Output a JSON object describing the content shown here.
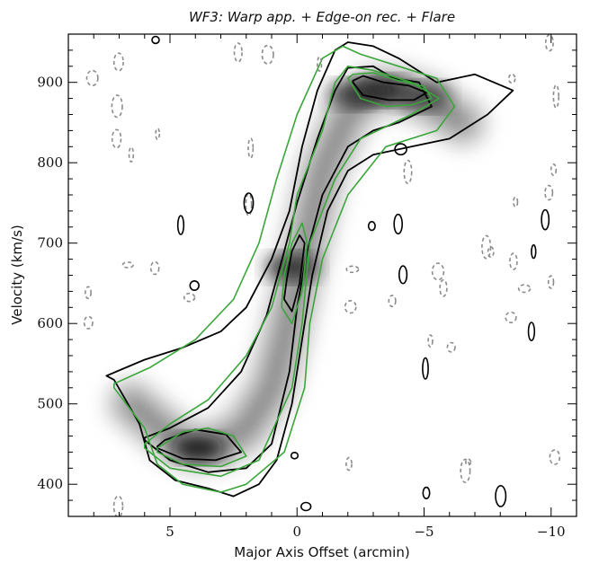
{
  "chart_data": {
    "type": "heatmap",
    "title": "WF3: Warp app. + Edge-on rec. + Flare",
    "xlabel": "Major Axis Offset (arcmin)",
    "ylabel": "Velocity (km/s)",
    "xlim": [
      9.0,
      -11.0
    ],
    "ylim": [
      360,
      960
    ],
    "x_ticks": [
      {
        "value": 5,
        "label": "5"
      },
      {
        "value": 0,
        "label": "0"
      },
      {
        "value": -5,
        "label": "−5"
      },
      {
        "value": -10,
        "label": "−10"
      }
    ],
    "y_ticks": [
      {
        "value": 400,
        "label": "400"
      },
      {
        "value": 500,
        "label": "500"
      },
      {
        "value": 600,
        "label": "600"
      },
      {
        "value": 700,
        "label": "700"
      },
      {
        "value": 800,
        "label": "800"
      },
      {
        "value": 900,
        "label": "900"
      }
    ],
    "ridge": [
      {
        "x": 6.5,
        "y": 500
      },
      {
        "x": 5.0,
        "y": 460
      },
      {
        "x": 4.0,
        "y": 445
      },
      {
        "x": 3.0,
        "y": 450
      },
      {
        "x": 2.0,
        "y": 470
      },
      {
        "x": 1.0,
        "y": 520
      },
      {
        "x": 0.5,
        "y": 580
      },
      {
        "x": 0.0,
        "y": 650
      },
      {
        "x": -0.5,
        "y": 720
      },
      {
        "x": -1.0,
        "y": 790
      },
      {
        "x": -2.0,
        "y": 860
      },
      {
        "x": -3.0,
        "y": 890
      },
      {
        "x": -4.0,
        "y": 890
      },
      {
        "x": -5.0,
        "y": 880
      },
      {
        "x": -6.5,
        "y": 850
      }
    ],
    "peaks": [
      {
        "x": 3.9,
        "y": 445,
        "intensity": 1.0
      },
      {
        "x": 0.2,
        "y": 670,
        "intensity": 0.75
      },
      {
        "x": -3.4,
        "y": 890,
        "intensity": 0.85
      },
      {
        "x": -2.3,
        "y": 885,
        "intensity": 0.7
      },
      {
        "x": -5.0,
        "y": 882,
        "intensity": 0.55
      }
    ],
    "contours_model": [
      [
        [
          7.2,
          520
        ],
        [
          6.0,
          470
        ],
        [
          5.5,
          425
        ],
        [
          4.5,
          400
        ],
        [
          3.0,
          390
        ],
        [
          2.0,
          400
        ],
        [
          0.5,
          440
        ],
        [
          -0.3,
          520
        ],
        [
          -0.5,
          600
        ],
        [
          -1.0,
          680
        ],
        [
          -2.0,
          760
        ],
        [
          -3.5,
          820
        ],
        [
          -5.5,
          840
        ],
        [
          -6.2,
          870
        ],
        [
          -5.5,
          905
        ],
        [
          -4.0,
          920
        ],
        [
          -2.5,
          935
        ],
        [
          -1.8,
          945
        ],
        [
          -1.0,
          930
        ],
        [
          0.0,
          860
        ],
        [
          0.8,
          780
        ],
        [
          1.5,
          700
        ],
        [
          2.5,
          630
        ],
        [
          4.0,
          580
        ],
        [
          5.8,
          545
        ],
        [
          7.2,
          525
        ]
      ],
      [
        [
          6.0,
          445
        ],
        [
          5.0,
          420
        ],
        [
          3.0,
          410
        ],
        [
          1.5,
          430
        ],
        [
          0.2,
          520
        ],
        [
          -0.2,
          600
        ],
        [
          -0.5,
          700
        ],
        [
          -1.5,
          780
        ],
        [
          -2.5,
          830
        ],
        [
          -4.5,
          860
        ],
        [
          -5.6,
          880
        ],
        [
          -4.5,
          900
        ],
        [
          -3.0,
          915
        ],
        [
          -2.0,
          920
        ],
        [
          -1.5,
          900
        ],
        [
          -1.0,
          840
        ],
        [
          0.0,
          760
        ],
        [
          0.3,
          700
        ],
        [
          1.0,
          620
        ],
        [
          2.0,
          560
        ],
        [
          3.5,
          505
        ],
        [
          5.0,
          475
        ],
        [
          6.0,
          450
        ]
      ],
      [
        [
          5.5,
          440
        ],
        [
          4.5,
          425
        ],
        [
          3.0,
          422
        ],
        [
          2.0,
          435
        ],
        [
          2.5,
          460
        ],
        [
          3.5,
          470
        ],
        [
          4.5,
          465
        ],
        [
          5.5,
          445
        ]
      ],
      [
        [
          0.6,
          620
        ],
        [
          0.2,
          600
        ],
        [
          -0.2,
          640
        ],
        [
          -0.4,
          700
        ],
        [
          -0.2,
          725
        ],
        [
          0.2,
          700
        ],
        [
          0.5,
          660
        ],
        [
          0.6,
          625
        ]
      ],
      [
        [
          -2.0,
          905
        ],
        [
          -2.5,
          880
        ],
        [
          -3.5,
          870
        ],
        [
          -4.5,
          872
        ],
        [
          -5.3,
          880
        ],
        [
          -5.0,
          895
        ],
        [
          -4.0,
          902
        ],
        [
          -3.0,
          912
        ],
        [
          -2.2,
          910
        ]
      ]
    ],
    "contours_data": [
      [
        [
          7.2,
          530
        ],
        [
          6.2,
          475
        ],
        [
          5.8,
          430
        ],
        [
          4.8,
          405
        ],
        [
          3.5,
          395
        ],
        [
          2.5,
          385
        ],
        [
          1.5,
          400
        ],
        [
          0.8,
          430
        ],
        [
          0.2,
          500
        ],
        [
          -0.2,
          580
        ],
        [
          -0.6,
          660
        ],
        [
          -1.2,
          740
        ],
        [
          -2.0,
          790
        ],
        [
          -3.0,
          810
        ],
        [
          -4.5,
          820
        ],
        [
          -6.0,
          830
        ],
        [
          -7.5,
          860
        ],
        [
          -8.5,
          890
        ],
        [
          -7.0,
          910
        ],
        [
          -5.5,
          900
        ],
        [
          -4.0,
          930
        ],
        [
          -3.0,
          945
        ],
        [
          -2.0,
          950
        ],
        [
          -1.5,
          940
        ],
        [
          -0.8,
          890
        ],
        [
          -0.2,
          820
        ],
        [
          0.3,
          740
        ],
        [
          1.0,
          680
        ],
        [
          2.0,
          620
        ],
        [
          3.0,
          590
        ],
        [
          4.5,
          570
        ],
        [
          6.0,
          555
        ],
        [
          7.5,
          535
        ]
      ],
      [
        [
          6.0,
          455
        ],
        [
          5.0,
          430
        ],
        [
          3.5,
          415
        ],
        [
          2.0,
          420
        ],
        [
          1.0,
          450
        ],
        [
          0.3,
          540
        ],
        [
          0.0,
          620
        ],
        [
          -0.4,
          690
        ],
        [
          -1.0,
          760
        ],
        [
          -2.0,
          820
        ],
        [
          -3.0,
          840
        ],
        [
          -4.0,
          850
        ],
        [
          -5.3,
          870
        ],
        [
          -4.8,
          900
        ],
        [
          -3.8,
          905
        ],
        [
          -3.0,
          920
        ],
        [
          -2.0,
          918
        ],
        [
          -1.5,
          890
        ],
        [
          -0.8,
          830
        ],
        [
          0.0,
          750
        ],
        [
          0.5,
          690
        ],
        [
          1.2,
          610
        ],
        [
          2.2,
          540
        ],
        [
          3.5,
          495
        ],
        [
          5.0,
          470
        ],
        [
          6.0,
          458
        ]
      ],
      [
        [
          5.5,
          445
        ],
        [
          4.5,
          432
        ],
        [
          3.2,
          430
        ],
        [
          2.2,
          440
        ],
        [
          2.8,
          462
        ],
        [
          4.0,
          468
        ],
        [
          5.2,
          455
        ],
        [
          5.5,
          447
        ]
      ],
      [
        [
          0.5,
          630
        ],
        [
          0.2,
          615
        ],
        [
          -0.1,
          650
        ],
        [
          -0.3,
          700
        ],
        [
          -0.1,
          710
        ],
        [
          0.2,
          690
        ],
        [
          0.4,
          655
        ],
        [
          0.5,
          632
        ]
      ],
      [
        [
          -2.2,
          900
        ],
        [
          -2.6,
          884
        ],
        [
          -3.6,
          878
        ],
        [
          -4.6,
          878
        ],
        [
          -5.1,
          887
        ],
        [
          -4.4,
          896
        ],
        [
          -3.4,
          900
        ],
        [
          -2.6,
          908
        ],
        [
          -2.2,
          902
        ]
      ]
    ]
  }
}
